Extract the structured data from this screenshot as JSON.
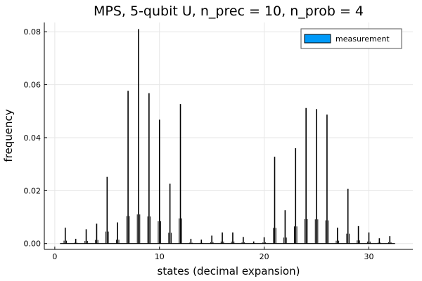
{
  "chart_data": {
    "type": "bar",
    "title": "MPS, 5-qubit U, n_prec = 10, n_prob = 4",
    "xlabel": "states (decimal expansion)",
    "ylabel": "frequency",
    "xlim": [
      -1,
      34.2
    ],
    "ylim": [
      -0.0022,
      0.0835
    ],
    "xticks": [
      0,
      10,
      20,
      30
    ],
    "yticks": [
      0.0,
      0.02,
      0.04,
      0.06,
      0.08
    ],
    "ytick_labels": [
      "0.00",
      "0.02",
      "0.04",
      "0.06",
      "0.08"
    ],
    "grid": true,
    "legend": {
      "position": "top-right",
      "entries": [
        "measurement"
      ]
    },
    "colors": {
      "series_fill": "#009af9",
      "bars": "#000000"
    },
    "series": [
      {
        "name": "measurement",
        "x": [
          1,
          2,
          3,
          4,
          5,
          6,
          7,
          8,
          9,
          10,
          11,
          12,
          13,
          14,
          15,
          16,
          17,
          18,
          19,
          20,
          21,
          22,
          23,
          24,
          25,
          26,
          27,
          28,
          29,
          30,
          31,
          32
        ],
        "values": [
          0.006,
          0.0018,
          0.0054,
          0.0075,
          0.0252,
          0.008,
          0.0577,
          0.081,
          0.0568,
          0.0468,
          0.0226,
          0.0527,
          0.0018,
          0.0015,
          0.003,
          0.0042,
          0.0042,
          0.0025,
          0.0008,
          0.0024,
          0.0328,
          0.0126,
          0.036,
          0.0512,
          0.0508,
          0.0487,
          0.006,
          0.0207,
          0.0066,
          0.0042,
          0.002,
          0.0028
        ]
      }
    ]
  }
}
